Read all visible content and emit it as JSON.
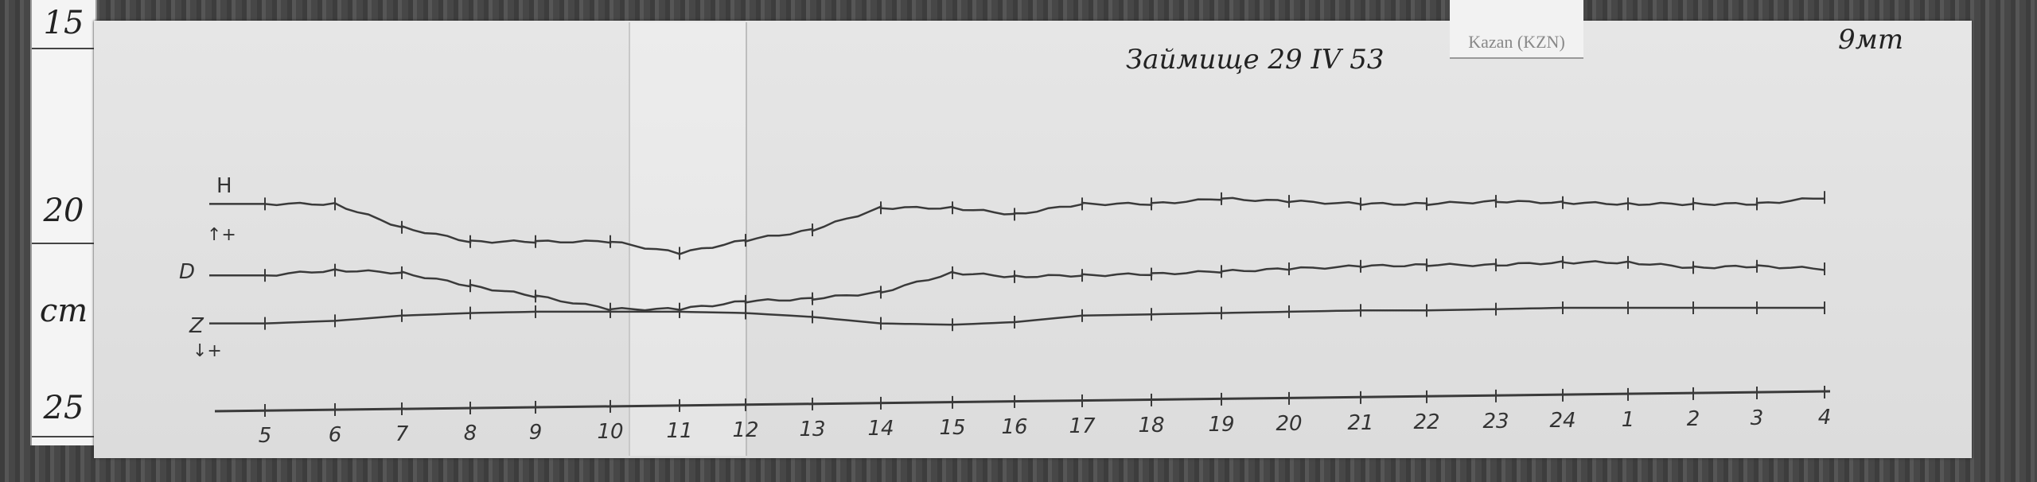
{
  "header": {
    "title_handwritten": "Займище 29 IV 53",
    "station_label": "Kazan (KZN)",
    "corner_note": "9мт"
  },
  "ruler": {
    "marks": [
      "15",
      "20",
      "cm",
      "25"
    ]
  },
  "trace_labels": {
    "h": "H",
    "h_sign": "↑+",
    "d": "D",
    "z": "Z",
    "z_sign": "↓+"
  },
  "chart_data": {
    "type": "line",
    "title": "",
    "xlabel": "",
    "ylabel": "",
    "x": [
      "5",
      "6",
      "7",
      "8",
      "9",
      "10",
      "11",
      "12",
      "13",
      "14",
      "15",
      "16",
      "17",
      "18",
      "19",
      "20",
      "21",
      "22",
      "23",
      "24",
      "1",
      "2",
      "3",
      "4"
    ],
    "y_units": "relative trace deflection (arbitrary, no printed scale)",
    "grid": false,
    "series": [
      {
        "name": "H",
        "values": [
          103,
          103,
          85,
          74,
          74,
          74,
          65,
          75,
          83,
          100,
          100,
          95,
          103,
          103,
          107,
          105,
          103,
          103,
          105,
          104,
          103,
          103,
          103,
          108
        ]
      },
      {
        "name": "D",
        "values": [
          48,
          52,
          50,
          40,
          32,
          22,
          22,
          28,
          30,
          35,
          50,
          47,
          48,
          49,
          51,
          53,
          55,
          56,
          56,
          58,
          58,
          54,
          55,
          53
        ]
      },
      {
        "name": "Z",
        "values": [
          11,
          13,
          17,
          19,
          20,
          20,
          20,
          19,
          16,
          11,
          10,
          12,
          17,
          18,
          19,
          20,
          21,
          21,
          22,
          23,
          23,
          23,
          23,
          23
        ]
      }
    ]
  },
  "colors": {
    "trace": "#3a3a3a",
    "paper": "#e2e2e2",
    "background": "#4a4a4a"
  }
}
